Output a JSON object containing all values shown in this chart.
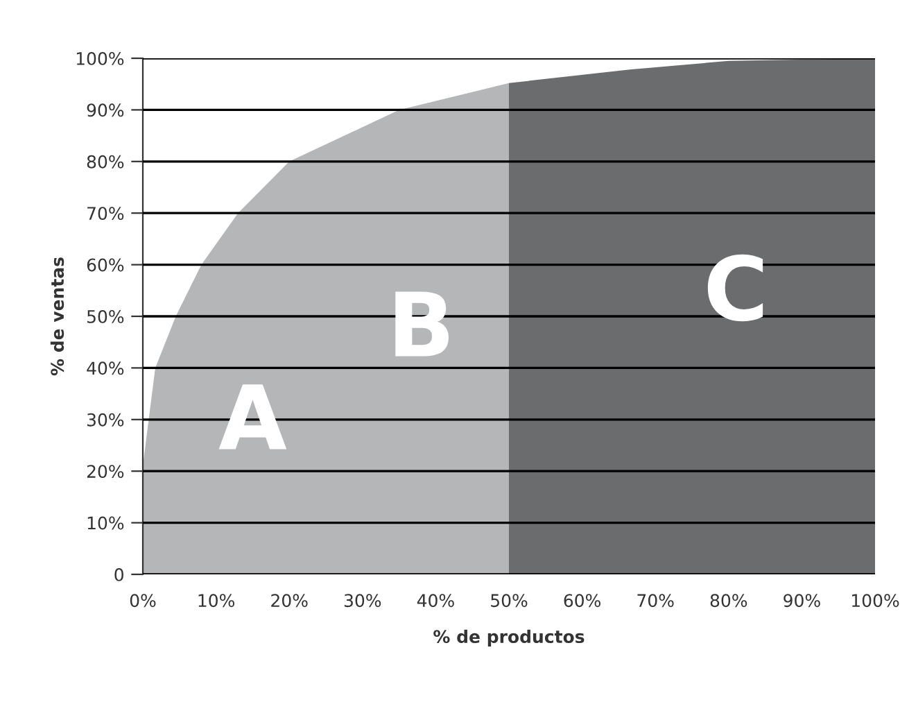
{
  "chart_data": {
    "type": "area",
    "xlabel": "% de productos",
    "ylabel": "% de ventas",
    "series": [
      {
        "color": "#b4b6b8",
        "x": [
          0,
          0.8,
          1.7,
          4.5,
          8,
          13,
          20,
          35,
          50
        ],
        "values": [
          21,
          30,
          40,
          50,
          60,
          70,
          80,
          90,
          95.2
        ]
      },
      {
        "color": "#6a6c6e",
        "x": [
          50,
          66.5,
          80,
          100
        ],
        "values": [
          95.2,
          97.8,
          99.5,
          100
        ]
      }
    ],
    "xlim": [
      0,
      100
    ],
    "xticks": [
      {
        "value": 0,
        "label": "0%"
      },
      {
        "value": 10,
        "label": "10%"
      },
      {
        "value": 20,
        "label": "20%"
      },
      {
        "value": 30,
        "label": "30%"
      },
      {
        "value": 40,
        "label": "40%"
      },
      {
        "value": 50,
        "label": "50%"
      },
      {
        "value": 60,
        "label": "60%"
      },
      {
        "value": 70,
        "label": "70%"
      },
      {
        "value": 80,
        "label": "80%"
      },
      {
        "value": 90,
        "label": "90%"
      },
      {
        "value": 100,
        "label": "100%"
      }
    ],
    "ylim": [
      0,
      100
    ],
    "yticks": [
      0,
      {
        "value": 10,
        "label": "10%"
      },
      {
        "value": 20,
        "label": "20%"
      },
      {
        "value": 30,
        "label": "30%"
      },
      {
        "value": 40,
        "label": "40%"
      },
      {
        "value": 50,
        "label": "50%"
      },
      {
        "value": 60,
        "label": "60%"
      },
      {
        "value": 70,
        "label": "70%"
      },
      {
        "value": 80,
        "label": "80%"
      },
      {
        "value": 90,
        "label": "90%"
      },
      {
        "value": 100,
        "label": "100%"
      }
    ],
    "grid": "y",
    "legend": false,
    "annotations": [
      "A",
      "B",
      "C"
    ]
  }
}
